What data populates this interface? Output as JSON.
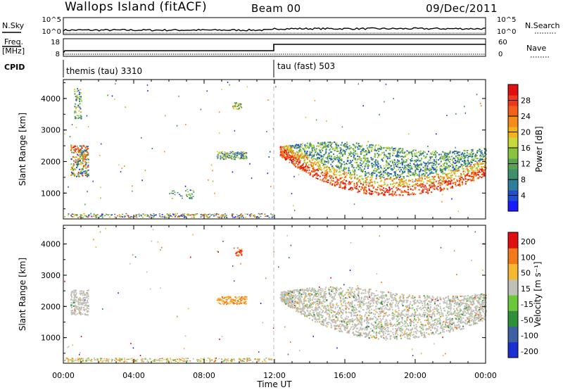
{
  "header": {
    "site": "Wallops Island (fitACF)",
    "beam": "Beam 00",
    "date": "09/Dec/2011"
  },
  "strip": {
    "nsky_label": "N.Sky",
    "nsky_ticks": [
      "10^5",
      "10^0"
    ],
    "nsearch_label": "N.Search",
    "nsearch_ticks": [
      "10^5",
      "10^0"
    ],
    "freq_label": "Freq.",
    "freq_unit": "[MHz]",
    "freq_ticks": [
      "18",
      "8"
    ],
    "nave_label": "Nave",
    "nave_ticks": [
      "60",
      "0"
    ],
    "cpid_label": "CPID",
    "cpid_segments": [
      "themis (tau) 3310",
      "tau (fast) 503"
    ]
  },
  "chart_data": [
    {
      "type": "heatmap",
      "name": "power-panel",
      "title": "",
      "xlabel": "Time UT",
      "ylabel": "Slant Range [km]",
      "x_ticks": [
        "00:00",
        "04:00",
        "08:00",
        "12:00",
        "16:00",
        "20:00",
        "00:00"
      ],
      "y_ticks": [
        1000,
        2000,
        3000,
        4000
      ],
      "xlim": [
        0,
        24
      ],
      "ylim": [
        180,
        4600
      ],
      "colorbar": {
        "label": "Power [dB]",
        "ticks": [
          "4",
          "8",
          "12",
          "16",
          "20",
          "24",
          "28"
        ],
        "colors": [
          "#1a1aff",
          "#1f4fd0",
          "#2e7d9a",
          "#3f8f6a",
          "#5aa352",
          "#88c43e",
          "#c8d83a",
          "#f2b21c",
          "#f48c1a",
          "#f2601a",
          "#ee3a1a",
          "#e01010"
        ]
      },
      "features": [
        {
          "t0": 0.4,
          "t1": 1.4,
          "r0": 1500,
          "r1": 2500,
          "level": "medium-high"
        },
        {
          "t0": 0.6,
          "t1": 1.0,
          "r0": 3300,
          "r1": 4300,
          "level": "low"
        },
        {
          "t0": 8.7,
          "t1": 10.4,
          "r0": 2050,
          "r1": 2300,
          "level": "medium"
        },
        {
          "t0": 9.6,
          "t1": 10.1,
          "r0": 3600,
          "r1": 3850,
          "level": "low"
        },
        {
          "t0": 6.0,
          "t1": 7.4,
          "r0": 800,
          "r1": 1100,
          "level": "low"
        },
        {
          "t0": 12.3,
          "t1": 24.0,
          "r0": 900,
          "r1": 2600,
          "level": "high"
        },
        {
          "t0": 0.0,
          "t1": 11.9,
          "r0": 200,
          "r1": 330,
          "level": "low"
        }
      ]
    },
    {
      "type": "heatmap",
      "name": "velocity-panel",
      "title": "",
      "xlabel": "Time UT",
      "ylabel": "Slant Range [km]",
      "x_ticks": [
        "00:00",
        "04:00",
        "08:00",
        "12:00",
        "16:00",
        "20:00",
        "00:00"
      ],
      "y_ticks": [
        1000,
        2000,
        3000,
        4000
      ],
      "xlim": [
        0,
        24
      ],
      "ylim": [
        180,
        4600
      ],
      "colorbar": {
        "label": "Velocity [m s⁻¹]",
        "ticks": [
          "200",
          "100",
          "50",
          "15",
          "-15",
          "-50",
          "-100",
          "-200"
        ],
        "colors": [
          "#1a2fd0",
          "#3f60a0",
          "#2f8f3a",
          "#6cc83a",
          "#c0c0b8",
          "#f5b830",
          "#f27a1a",
          "#e01010"
        ]
      },
      "features": [
        {
          "t0": 0.4,
          "t1": 1.4,
          "r0": 1700,
          "r1": 2500,
          "level": "ground-scatter"
        },
        {
          "t0": 8.7,
          "t1": 10.4,
          "r0": 2050,
          "r1": 2300,
          "level": "orange"
        },
        {
          "t0": 9.6,
          "t1": 10.1,
          "r0": 3600,
          "r1": 3850,
          "level": "red"
        },
        {
          "t0": 12.3,
          "t1": 24.0,
          "r0": 900,
          "r1": 2600,
          "level": "ground-scatter"
        },
        {
          "t0": 0.0,
          "t1": 11.9,
          "r0": 200,
          "r1": 330,
          "level": "orange"
        }
      ]
    }
  ]
}
